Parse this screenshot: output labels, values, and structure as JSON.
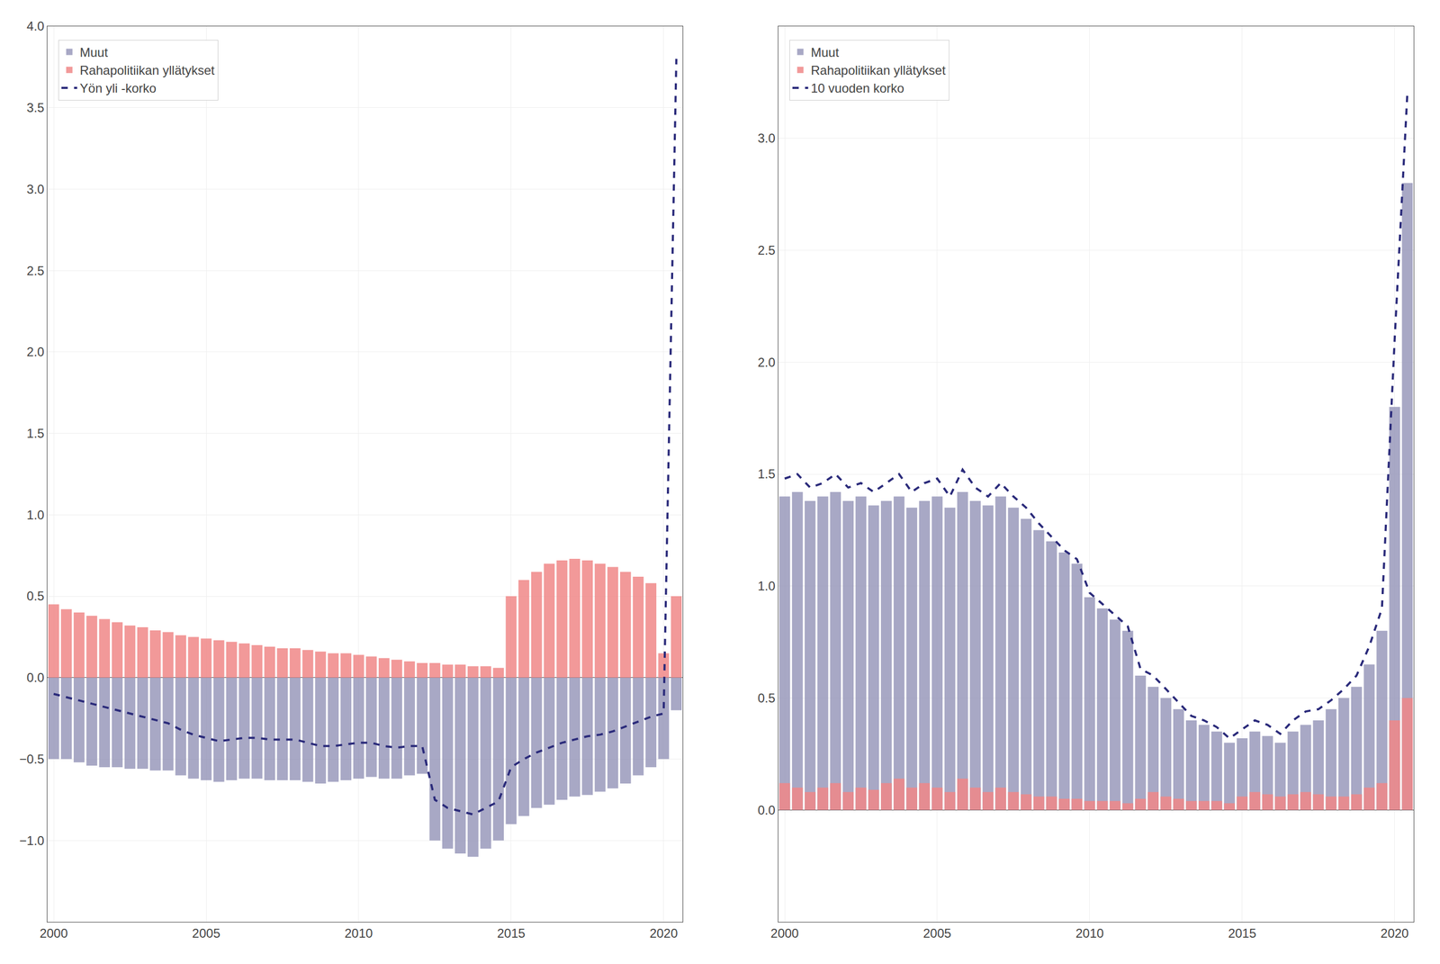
{
  "chart_data": [
    {
      "type": "bar",
      "categories": [
        "2000",
        null,
        null,
        null,
        null,
        null,
        null,
        null,
        null,
        null,
        null,
        null,
        "2005",
        null,
        null,
        null,
        null,
        null,
        null,
        null,
        null,
        null,
        null,
        null,
        "2010",
        null,
        null,
        null,
        null,
        null,
        null,
        null,
        null,
        null,
        null,
        null,
        "2015",
        null,
        null,
        null,
        null,
        null,
        null,
        null,
        null,
        null,
        null,
        null,
        "2020",
        null
      ],
      "series": [
        {
          "name": "Muut",
          "type": "bar",
          "color": "#9999bb",
          "values": [
            -0.5,
            -0.5,
            -0.52,
            -0.54,
            -0.55,
            -0.55,
            -0.56,
            -0.56,
            -0.57,
            -0.57,
            -0.6,
            -0.62,
            -0.63,
            -0.64,
            -0.63,
            -0.62,
            -0.62,
            -0.63,
            -0.63,
            -0.63,
            -0.64,
            -0.65,
            -0.64,
            -0.63,
            -0.62,
            -0.61,
            -0.62,
            -0.62,
            -0.6,
            -0.59,
            -1.0,
            -1.05,
            -1.08,
            -1.1,
            -1.05,
            -1.0,
            -0.9,
            -0.85,
            -0.8,
            -0.78,
            -0.75,
            -0.73,
            -0.72,
            -0.7,
            -0.68,
            -0.65,
            -0.6,
            -0.55,
            -0.5,
            -0.2
          ]
        },
        {
          "name": "Rahapolitiikan yllätykset",
          "type": "bar",
          "color": "#f08888",
          "values": [
            0.45,
            0.42,
            0.4,
            0.38,
            0.36,
            0.34,
            0.32,
            0.31,
            0.29,
            0.28,
            0.26,
            0.25,
            0.24,
            0.23,
            0.22,
            0.21,
            0.2,
            0.19,
            0.18,
            0.18,
            0.17,
            0.16,
            0.15,
            0.15,
            0.14,
            0.13,
            0.12,
            0.11,
            0.1,
            0.09,
            0.09,
            0.08,
            0.08,
            0.07,
            0.07,
            0.06,
            0.5,
            0.6,
            0.65,
            0.7,
            0.72,
            0.73,
            0.72,
            0.7,
            0.68,
            0.65,
            0.62,
            0.58,
            0.15,
            0.5
          ]
        },
        {
          "name": "Yön yli -korko",
          "type": "line",
          "color": "#2a2a7a",
          "line_style": "dashed",
          "values": [
            -0.1,
            -0.12,
            -0.14,
            -0.16,
            -0.18,
            -0.2,
            -0.22,
            -0.24,
            -0.26,
            -0.28,
            -0.32,
            -0.35,
            -0.37,
            -0.39,
            -0.38,
            -0.37,
            -0.37,
            -0.38,
            -0.38,
            -0.38,
            -0.4,
            -0.42,
            -0.42,
            -0.41,
            -0.4,
            -0.4,
            -0.42,
            -0.43,
            -0.42,
            -0.42,
            -0.75,
            -0.8,
            -0.82,
            -0.84,
            -0.8,
            -0.76,
            -0.55,
            -0.5,
            -0.46,
            -0.43,
            -0.4,
            -0.38,
            -0.36,
            -0.35,
            -0.33,
            -0.3,
            -0.27,
            -0.24,
            -0.22,
            3.8
          ]
        }
      ],
      "stacked": false,
      "ylim": [
        -1.5,
        4.0
      ],
      "yticks": [
        {
          "value": -1.0,
          "label": "−1.0"
        },
        {
          "value": -0.5,
          "label": "−0.5"
        },
        {
          "value": 0.0,
          "label": "0.0"
        },
        0.5,
        {
          "value": 1.0,
          "label": "1.0"
        },
        1.5,
        {
          "value": 2.0,
          "label": "2.0"
        },
        2.5,
        {
          "value": 3.0,
          "label": "3.0"
        },
        3.5,
        {
          "value": 4.0,
          "label": "4.0"
        }
      ],
      "grid": true,
      "legend": "upper left"
    },
    {
      "type": "bar",
      "categories": [
        "2000",
        null,
        null,
        null,
        null,
        null,
        null,
        null,
        null,
        null,
        null,
        null,
        "2005",
        null,
        null,
        null,
        null,
        null,
        null,
        null,
        null,
        null,
        null,
        null,
        "2010",
        null,
        null,
        null,
        null,
        null,
        null,
        null,
        null,
        null,
        null,
        null,
        "2015",
        null,
        null,
        null,
        null,
        null,
        null,
        null,
        null,
        null,
        null,
        null,
        "2020",
        null
      ],
      "series": [
        {
          "name": "Muut",
          "type": "bar",
          "color": "#9999bb",
          "values": [
            1.4,
            1.42,
            1.38,
            1.4,
            1.42,
            1.38,
            1.4,
            1.36,
            1.38,
            1.4,
            1.35,
            1.38,
            1.4,
            1.35,
            1.42,
            1.38,
            1.36,
            1.4,
            1.35,
            1.3,
            1.25,
            1.2,
            1.15,
            1.1,
            0.95,
            0.9,
            0.85,
            0.8,
            0.6,
            0.55,
            0.5,
            0.45,
            0.4,
            0.38,
            0.35,
            0.3,
            0.32,
            0.35,
            0.33,
            0.3,
            0.35,
            0.38,
            0.4,
            0.45,
            0.5,
            0.55,
            0.65,
            0.8,
            1.8,
            2.8
          ]
        },
        {
          "name": "Rahapolitiikan yllätykset",
          "type": "bar",
          "color": "#f08888",
          "values": [
            0.12,
            0.1,
            0.08,
            0.1,
            0.12,
            0.08,
            0.1,
            0.09,
            0.12,
            0.14,
            0.1,
            0.12,
            0.1,
            0.08,
            0.14,
            0.1,
            0.08,
            0.1,
            0.08,
            0.07,
            0.06,
            0.06,
            0.05,
            0.05,
            0.04,
            0.04,
            0.04,
            0.03,
            0.05,
            0.08,
            0.06,
            0.05,
            0.04,
            0.04,
            0.04,
            0.03,
            0.06,
            0.08,
            0.07,
            0.06,
            0.07,
            0.08,
            0.07,
            0.06,
            0.06,
            0.07,
            0.1,
            0.12,
            0.4,
            0.5
          ]
        },
        {
          "name": "10 vuoden korko",
          "type": "line",
          "color": "#2a2a7a",
          "line_style": "dashed",
          "values": [
            1.48,
            1.5,
            1.44,
            1.46,
            1.5,
            1.44,
            1.46,
            1.42,
            1.46,
            1.5,
            1.42,
            1.46,
            1.48,
            1.4,
            1.52,
            1.44,
            1.4,
            1.46,
            1.4,
            1.35,
            1.28,
            1.22,
            1.16,
            1.12,
            0.97,
            0.92,
            0.87,
            0.82,
            0.63,
            0.6,
            0.54,
            0.48,
            0.42,
            0.4,
            0.37,
            0.32,
            0.36,
            0.4,
            0.38,
            0.34,
            0.4,
            0.44,
            0.45,
            0.49,
            0.54,
            0.6,
            0.73,
            0.9,
            2.1,
            3.2
          ]
        }
      ],
      "stacked": false,
      "ylim": [
        -0.5,
        3.5
      ],
      "yticks": [
        {
          "value": 0.0,
          "label": "0.0"
        },
        0.5,
        {
          "value": 1.0,
          "label": "1.0"
        },
        1.5,
        {
          "value": 2.0,
          "label": "2.0"
        },
        2.5,
        {
          "value": 3.0,
          "label": "3.0"
        }
      ],
      "grid": true,
      "legend": "upper left"
    }
  ]
}
